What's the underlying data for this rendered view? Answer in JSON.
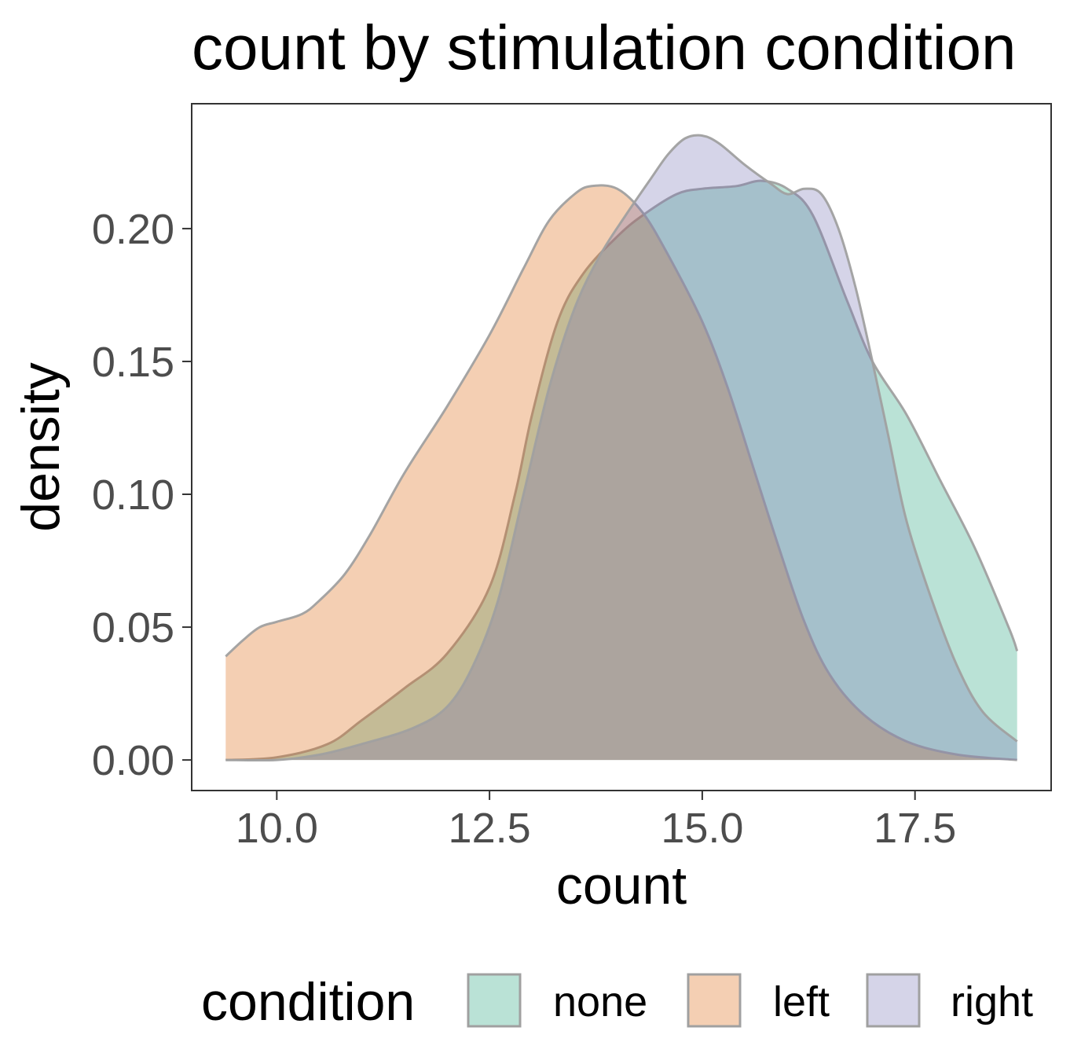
{
  "chart_data": {
    "type": "area",
    "subtype": "density",
    "title": "count by stimulation condition",
    "xlabel": "count",
    "ylabel": "density",
    "xlim": [
      9.0,
      19.1
    ],
    "ylim": [
      -0.0115,
      0.247
    ],
    "x_ticks": [
      10.0,
      12.5,
      15.0,
      17.5
    ],
    "x_tick_labels": [
      "10.0",
      "12.5",
      "15.0",
      "17.5"
    ],
    "y_ticks": [
      0.0,
      0.05,
      0.1,
      0.15,
      0.2
    ],
    "y_tick_labels": [
      "0.00",
      "0.05",
      "0.10",
      "0.15",
      "0.20"
    ],
    "grid": false,
    "legend": {
      "title": "condition",
      "position": "bottom"
    },
    "series": [
      {
        "name": "none",
        "color": "#1b9e77",
        "points": [
          [
            9.4,
            0.0
          ],
          [
            10.0,
            0.001
          ],
          [
            10.6,
            0.006
          ],
          [
            11.0,
            0.015
          ],
          [
            11.5,
            0.027
          ],
          [
            12.0,
            0.04
          ],
          [
            12.5,
            0.065
          ],
          [
            12.8,
            0.1
          ],
          [
            13.0,
            0.13
          ],
          [
            13.3,
            0.165
          ],
          [
            13.6,
            0.183
          ],
          [
            14.0,
            0.197
          ],
          [
            14.3,
            0.205
          ],
          [
            14.7,
            0.213
          ],
          [
            15.0,
            0.215
          ],
          [
            15.4,
            0.216
          ],
          [
            15.7,
            0.218
          ],
          [
            16.0,
            0.215
          ],
          [
            16.3,
            0.205
          ],
          [
            16.7,
            0.173
          ],
          [
            17.0,
            0.15
          ],
          [
            17.4,
            0.13
          ],
          [
            17.8,
            0.105
          ],
          [
            18.2,
            0.08
          ],
          [
            18.6,
            0.05
          ],
          [
            18.7,
            0.041
          ]
        ]
      },
      {
        "name": "left",
        "color": "#d95f02",
        "points": [
          [
            9.4,
            0.039
          ],
          [
            9.6,
            0.045
          ],
          [
            9.8,
            0.05
          ],
          [
            10.0,
            0.052
          ],
          [
            10.3,
            0.055
          ],
          [
            10.5,
            0.06
          ],
          [
            10.8,
            0.07
          ],
          [
            11.1,
            0.085
          ],
          [
            11.5,
            0.108
          ],
          [
            12.0,
            0.133
          ],
          [
            12.5,
            0.16
          ],
          [
            12.9,
            0.185
          ],
          [
            13.2,
            0.203
          ],
          [
            13.5,
            0.213
          ],
          [
            13.7,
            0.216
          ],
          [
            14.0,
            0.215
          ],
          [
            14.3,
            0.206
          ],
          [
            14.6,
            0.19
          ],
          [
            15.0,
            0.165
          ],
          [
            15.3,
            0.14
          ],
          [
            15.6,
            0.11
          ],
          [
            15.9,
            0.08
          ],
          [
            16.2,
            0.052
          ],
          [
            16.5,
            0.032
          ],
          [
            16.9,
            0.017
          ],
          [
            17.4,
            0.007
          ],
          [
            18.0,
            0.002
          ],
          [
            18.7,
            0.0
          ]
        ]
      },
      {
        "name": "right",
        "color": "#7570b3",
        "points": [
          [
            9.4,
            0.0
          ],
          [
            10.0,
            0.0
          ],
          [
            10.5,
            0.002
          ],
          [
            11.0,
            0.006
          ],
          [
            11.6,
            0.012
          ],
          [
            12.0,
            0.02
          ],
          [
            12.3,
            0.035
          ],
          [
            12.6,
            0.06
          ],
          [
            12.9,
            0.1
          ],
          [
            13.2,
            0.14
          ],
          [
            13.5,
            0.17
          ],
          [
            13.8,
            0.19
          ],
          [
            14.1,
            0.205
          ],
          [
            14.4,
            0.219
          ],
          [
            14.6,
            0.228
          ],
          [
            14.8,
            0.234
          ],
          [
            15.0,
            0.235
          ],
          [
            15.2,
            0.232
          ],
          [
            15.5,
            0.224
          ],
          [
            15.8,
            0.217
          ],
          [
            16.0,
            0.213
          ],
          [
            16.2,
            0.215
          ],
          [
            16.4,
            0.213
          ],
          [
            16.6,
            0.2
          ],
          [
            16.8,
            0.178
          ],
          [
            17.0,
            0.15
          ],
          [
            17.2,
            0.12
          ],
          [
            17.4,
            0.09
          ],
          [
            17.7,
            0.06
          ],
          [
            18.0,
            0.035
          ],
          [
            18.3,
            0.018
          ],
          [
            18.7,
            0.007
          ]
        ]
      }
    ]
  }
}
